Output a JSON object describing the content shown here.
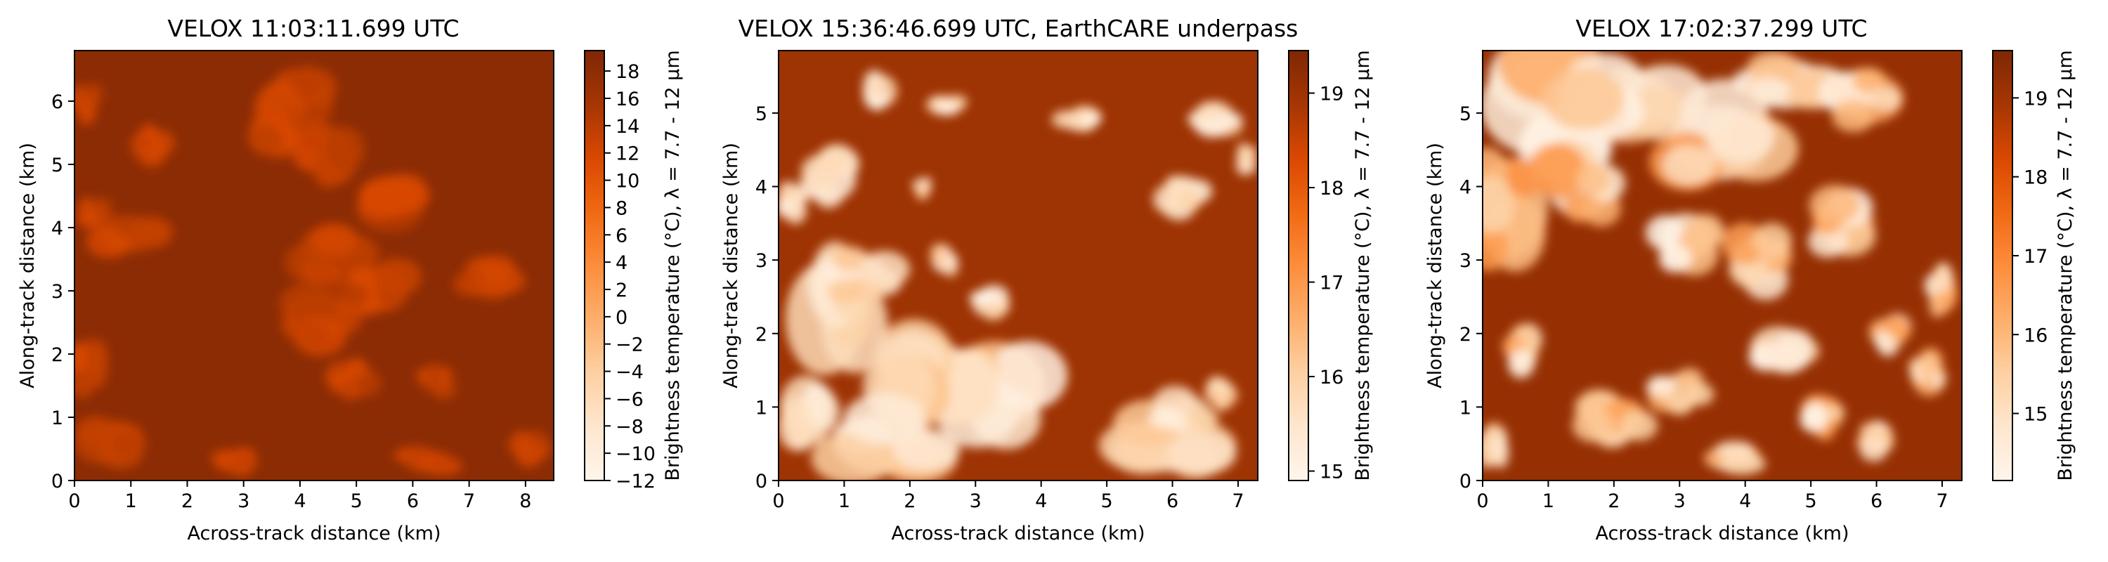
{
  "chart_data": [
    {
      "type": "heatmap",
      "title": "VELOX 11:03:11.699 UTC",
      "xlabel": "Across-track distance (km)",
      "ylabel": "Along-track distance (km)",
      "xlim": [
        0,
        8.5
      ],
      "ylim": [
        0,
        6.8
      ],
      "xticks": [
        0,
        1,
        2,
        3,
        4,
        5,
        6,
        7,
        8
      ],
      "yticks": [
        0,
        1,
        2,
        3,
        4,
        5,
        6
      ],
      "colorbar": {
        "label": "Brightness temperature (°C), λ = 7.7 - 12 μm",
        "range": [
          -12,
          19.5
        ],
        "ticks": [
          -12,
          -10,
          -8,
          -6,
          -4,
          -2,
          0,
          2,
          4,
          6,
          8,
          10,
          12,
          14,
          16,
          18
        ],
        "tick_labels": [
          "−12",
          "−10",
          "−8",
          "−6",
          "−4",
          "−2",
          "0",
          "2",
          "4",
          "6",
          "8",
          "10",
          "12",
          "14",
          "16",
          "18"
        ],
        "colormap": "Oranges"
      },
      "field": {
        "background_value": 18.2,
        "cloud_value_min": 11.5,
        "cloud_value_max": 14.5,
        "clouds": [
          {
            "x": 4.0,
            "y": 6.0,
            "rx": 0.7,
            "ry": 0.6
          },
          {
            "x": 3.6,
            "y": 5.6,
            "rx": 0.55,
            "ry": 0.45
          },
          {
            "x": 4.5,
            "y": 5.2,
            "rx": 0.5,
            "ry": 0.5
          },
          {
            "x": 5.6,
            "y": 4.3,
            "rx": 0.7,
            "ry": 0.45
          },
          {
            "x": 4.6,
            "y": 3.5,
            "rx": 0.8,
            "ry": 0.5
          },
          {
            "x": 5.4,
            "y": 3.0,
            "rx": 0.6,
            "ry": 0.4
          },
          {
            "x": 4.3,
            "y": 2.6,
            "rx": 0.7,
            "ry": 0.45
          },
          {
            "x": 1.0,
            "y": 3.9,
            "rx": 0.55,
            "ry": 0.35
          },
          {
            "x": 0.4,
            "y": 4.2,
            "rx": 0.3,
            "ry": 0.25
          },
          {
            "x": 1.3,
            "y": 5.3,
            "rx": 0.35,
            "ry": 0.3
          },
          {
            "x": 0.2,
            "y": 6.0,
            "rx": 0.25,
            "ry": 0.3
          },
          {
            "x": 0.5,
            "y": 0.6,
            "rx": 0.6,
            "ry": 0.4
          },
          {
            "x": 0.2,
            "y": 1.8,
            "rx": 0.3,
            "ry": 0.5
          },
          {
            "x": 5.0,
            "y": 1.6,
            "rx": 0.4,
            "ry": 0.3
          },
          {
            "x": 7.3,
            "y": 3.2,
            "rx": 0.5,
            "ry": 0.3
          },
          {
            "x": 6.4,
            "y": 1.6,
            "rx": 0.3,
            "ry": 0.25
          },
          {
            "x": 8.1,
            "y": 0.5,
            "rx": 0.35,
            "ry": 0.3
          },
          {
            "x": 6.3,
            "y": 0.3,
            "rx": 0.5,
            "ry": 0.2
          },
          {
            "x": 2.8,
            "y": 0.3,
            "rx": 0.4,
            "ry": 0.2
          }
        ]
      }
    },
    {
      "type": "heatmap",
      "title": "VELOX 15:36:46.699 UTC, EarthCARE underpass",
      "xlabel": "Across-track distance (km)",
      "ylabel": "Along-track distance (km)",
      "xlim": [
        0,
        7.3
      ],
      "ylim": [
        0,
        5.85
      ],
      "xticks": [
        0,
        1,
        2,
        3,
        4,
        5,
        6,
        7
      ],
      "yticks": [
        0,
        1,
        2,
        3,
        4,
        5
      ],
      "colorbar": {
        "label": "Brightness temperature (°C), λ = 7.7 - 12 μm",
        "range": [
          14.9,
          19.45
        ],
        "ticks": [
          15,
          16,
          17,
          18,
          19
        ],
        "tick_labels": [
          "15",
          "16",
          "17",
          "18",
          "19"
        ],
        "colormap": "Oranges"
      },
      "field": {
        "background_value": 19.0,
        "cloud_value_min": 15.0,
        "cloud_value_max": 16.3,
        "clouds": [
          {
            "x": 3.3,
            "y": 1.3,
            "rx": 0.9,
            "ry": 0.7
          },
          {
            "x": 2.2,
            "y": 1.4,
            "rx": 0.8,
            "ry": 0.7
          },
          {
            "x": 1.6,
            "y": 0.5,
            "rx": 0.9,
            "ry": 0.5
          },
          {
            "x": 0.7,
            "y": 2.2,
            "rx": 0.7,
            "ry": 0.9
          },
          {
            "x": 1.2,
            "y": 2.8,
            "rx": 0.55,
            "ry": 0.35
          },
          {
            "x": 0.4,
            "y": 1.0,
            "rx": 0.45,
            "ry": 0.5
          },
          {
            "x": 0.8,
            "y": 4.1,
            "rx": 0.45,
            "ry": 0.35
          },
          {
            "x": 0.2,
            "y": 3.8,
            "rx": 0.25,
            "ry": 0.25
          },
          {
            "x": 5.9,
            "y": 0.5,
            "rx": 0.8,
            "ry": 0.45
          },
          {
            "x": 6.2,
            "y": 0.9,
            "rx": 0.45,
            "ry": 0.3
          },
          {
            "x": 6.2,
            "y": 3.9,
            "rx": 0.35,
            "ry": 0.28
          },
          {
            "x": 4.6,
            "y": 4.9,
            "rx": 0.3,
            "ry": 0.18
          },
          {
            "x": 6.6,
            "y": 4.9,
            "rx": 0.4,
            "ry": 0.22
          },
          {
            "x": 1.6,
            "y": 5.3,
            "rx": 0.25,
            "ry": 0.25
          },
          {
            "x": 2.5,
            "y": 5.1,
            "rx": 0.3,
            "ry": 0.15
          },
          {
            "x": 2.5,
            "y": 3.0,
            "rx": 0.2,
            "ry": 0.2
          },
          {
            "x": 2.2,
            "y": 4.0,
            "rx": 0.15,
            "ry": 0.15
          },
          {
            "x": 3.2,
            "y": 2.4,
            "rx": 0.3,
            "ry": 0.2
          },
          {
            "x": 6.7,
            "y": 1.2,
            "rx": 0.25,
            "ry": 0.2
          },
          {
            "x": 7.1,
            "y": 4.4,
            "rx": 0.15,
            "ry": 0.2
          }
        ]
      }
    },
    {
      "type": "heatmap",
      "title": "VELOX 17:02:37.299 UTC",
      "xlabel": "Across-track distance (km)",
      "ylabel": "Along-track distance (km)",
      "xlim": [
        0,
        7.3
      ],
      "ylim": [
        0,
        5.85
      ],
      "xticks": [
        0,
        1,
        2,
        3,
        4,
        5,
        6,
        7
      ],
      "yticks": [
        0,
        1,
        2,
        3,
        4,
        5
      ],
      "colorbar": {
        "label": "Brightness temperature (°C), λ = 7.7 - 12 μm",
        "range": [
          14.15,
          19.6
        ],
        "ticks": [
          15,
          16,
          17,
          18,
          19
        ],
        "tick_labels": [
          "15",
          "16",
          "17",
          "18",
          "19"
        ],
        "colormap": "Oranges"
      },
      "field": {
        "background_value": 19.2,
        "cloud_value_min": 14.2,
        "cloud_value_max": 16.8,
        "clouds": [
          {
            "x": 0.9,
            "y": 5.1,
            "rx": 1.1,
            "ry": 0.8
          },
          {
            "x": 0.4,
            "y": 3.7,
            "rx": 0.7,
            "ry": 0.8
          },
          {
            "x": 2.2,
            "y": 5.1,
            "rx": 0.9,
            "ry": 0.6
          },
          {
            "x": 3.6,
            "y": 4.6,
            "rx": 0.9,
            "ry": 0.6
          },
          {
            "x": 1.5,
            "y": 4.0,
            "rx": 0.6,
            "ry": 0.5
          },
          {
            "x": 4.6,
            "y": 5.4,
            "rx": 0.7,
            "ry": 0.4
          },
          {
            "x": 3.1,
            "y": 3.3,
            "rx": 0.5,
            "ry": 0.4
          },
          {
            "x": 4.2,
            "y": 3.0,
            "rx": 0.5,
            "ry": 0.4
          },
          {
            "x": 5.5,
            "y": 3.5,
            "rx": 0.55,
            "ry": 0.4
          },
          {
            "x": 5.9,
            "y": 5.2,
            "rx": 0.6,
            "ry": 0.4
          },
          {
            "x": 4.5,
            "y": 1.8,
            "rx": 0.5,
            "ry": 0.35
          },
          {
            "x": 3.0,
            "y": 1.2,
            "rx": 0.4,
            "ry": 0.3
          },
          {
            "x": 2.0,
            "y": 0.8,
            "rx": 0.5,
            "ry": 0.35
          },
          {
            "x": 0.6,
            "y": 1.8,
            "rx": 0.3,
            "ry": 0.3
          },
          {
            "x": 5.2,
            "y": 0.9,
            "rx": 0.35,
            "ry": 0.3
          },
          {
            "x": 6.0,
            "y": 0.6,
            "rx": 0.3,
            "ry": 0.25
          },
          {
            "x": 6.8,
            "y": 1.4,
            "rx": 0.3,
            "ry": 0.3
          },
          {
            "x": 7.0,
            "y": 2.6,
            "rx": 0.25,
            "ry": 0.35
          },
          {
            "x": 6.2,
            "y": 2.0,
            "rx": 0.3,
            "ry": 0.25
          },
          {
            "x": 3.8,
            "y": 0.3,
            "rx": 0.5,
            "ry": 0.2
          },
          {
            "x": 0.2,
            "y": 0.5,
            "rx": 0.2,
            "ry": 0.35
          }
        ]
      }
    }
  ]
}
